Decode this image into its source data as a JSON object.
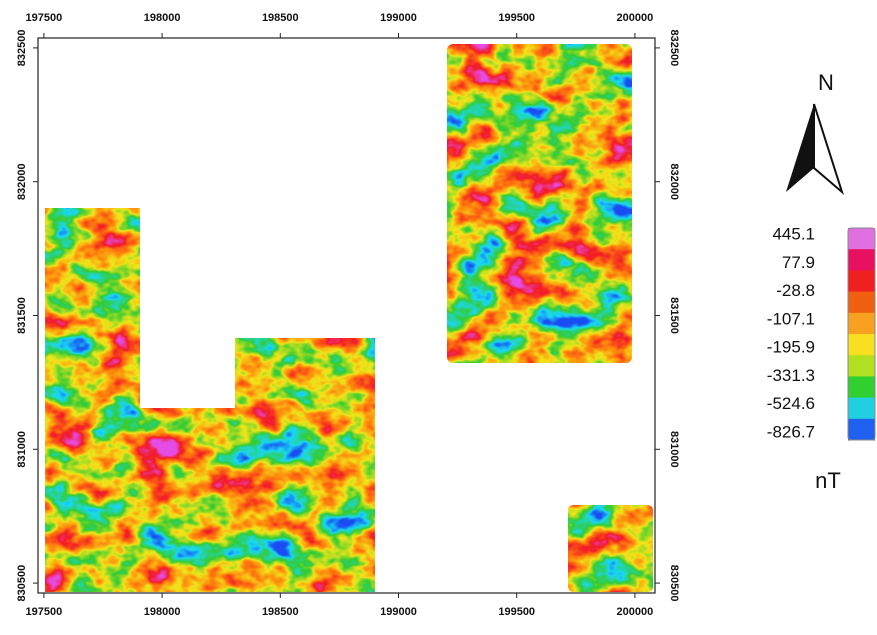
{
  "map": {
    "xlim": [
      197475,
      200085
    ],
    "ylim": [
      830463,
      832537
    ],
    "xticks": [
      197500,
      198000,
      198500,
      199000,
      199500,
      200000
    ],
    "yticks": [
      830500,
      831000,
      831500,
      832000,
      832500
    ],
    "north_label": "N",
    "legend": {
      "values": [
        445.1,
        77.9,
        -28.8,
        -107.1,
        -195.9,
        -331.3,
        -524.6,
        -826.7
      ],
      "colors": [
        "#e070e0",
        "#e81060",
        "#f02020",
        "#f06010",
        "#f8a020",
        "#f8e020",
        "#b0e020",
        "#30d030",
        "#20d0e0",
        "#2060f0"
      ],
      "unit": "nT"
    }
  }
}
